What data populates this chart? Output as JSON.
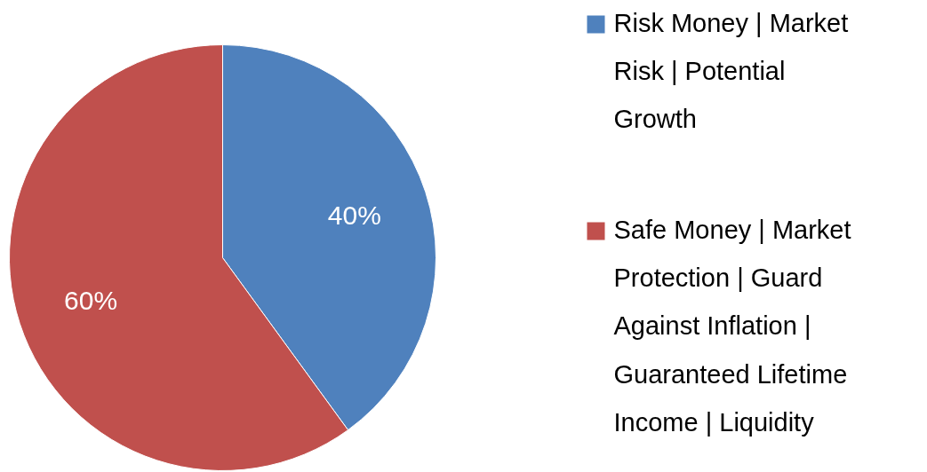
{
  "chart_data": {
    "type": "pie",
    "categories": [
      "Risk Money | Market Risk | Potential Growth",
      "Safe Money | Market Protection | Guard Against Inflation | Guaranteed Lifetime Income | Liquidity"
    ],
    "values": [
      40,
      60
    ],
    "colors": [
      "#4f81bd",
      "#c0504d"
    ],
    "value_labels": [
      "40%",
      "60%"
    ],
    "legend": "right"
  }
}
